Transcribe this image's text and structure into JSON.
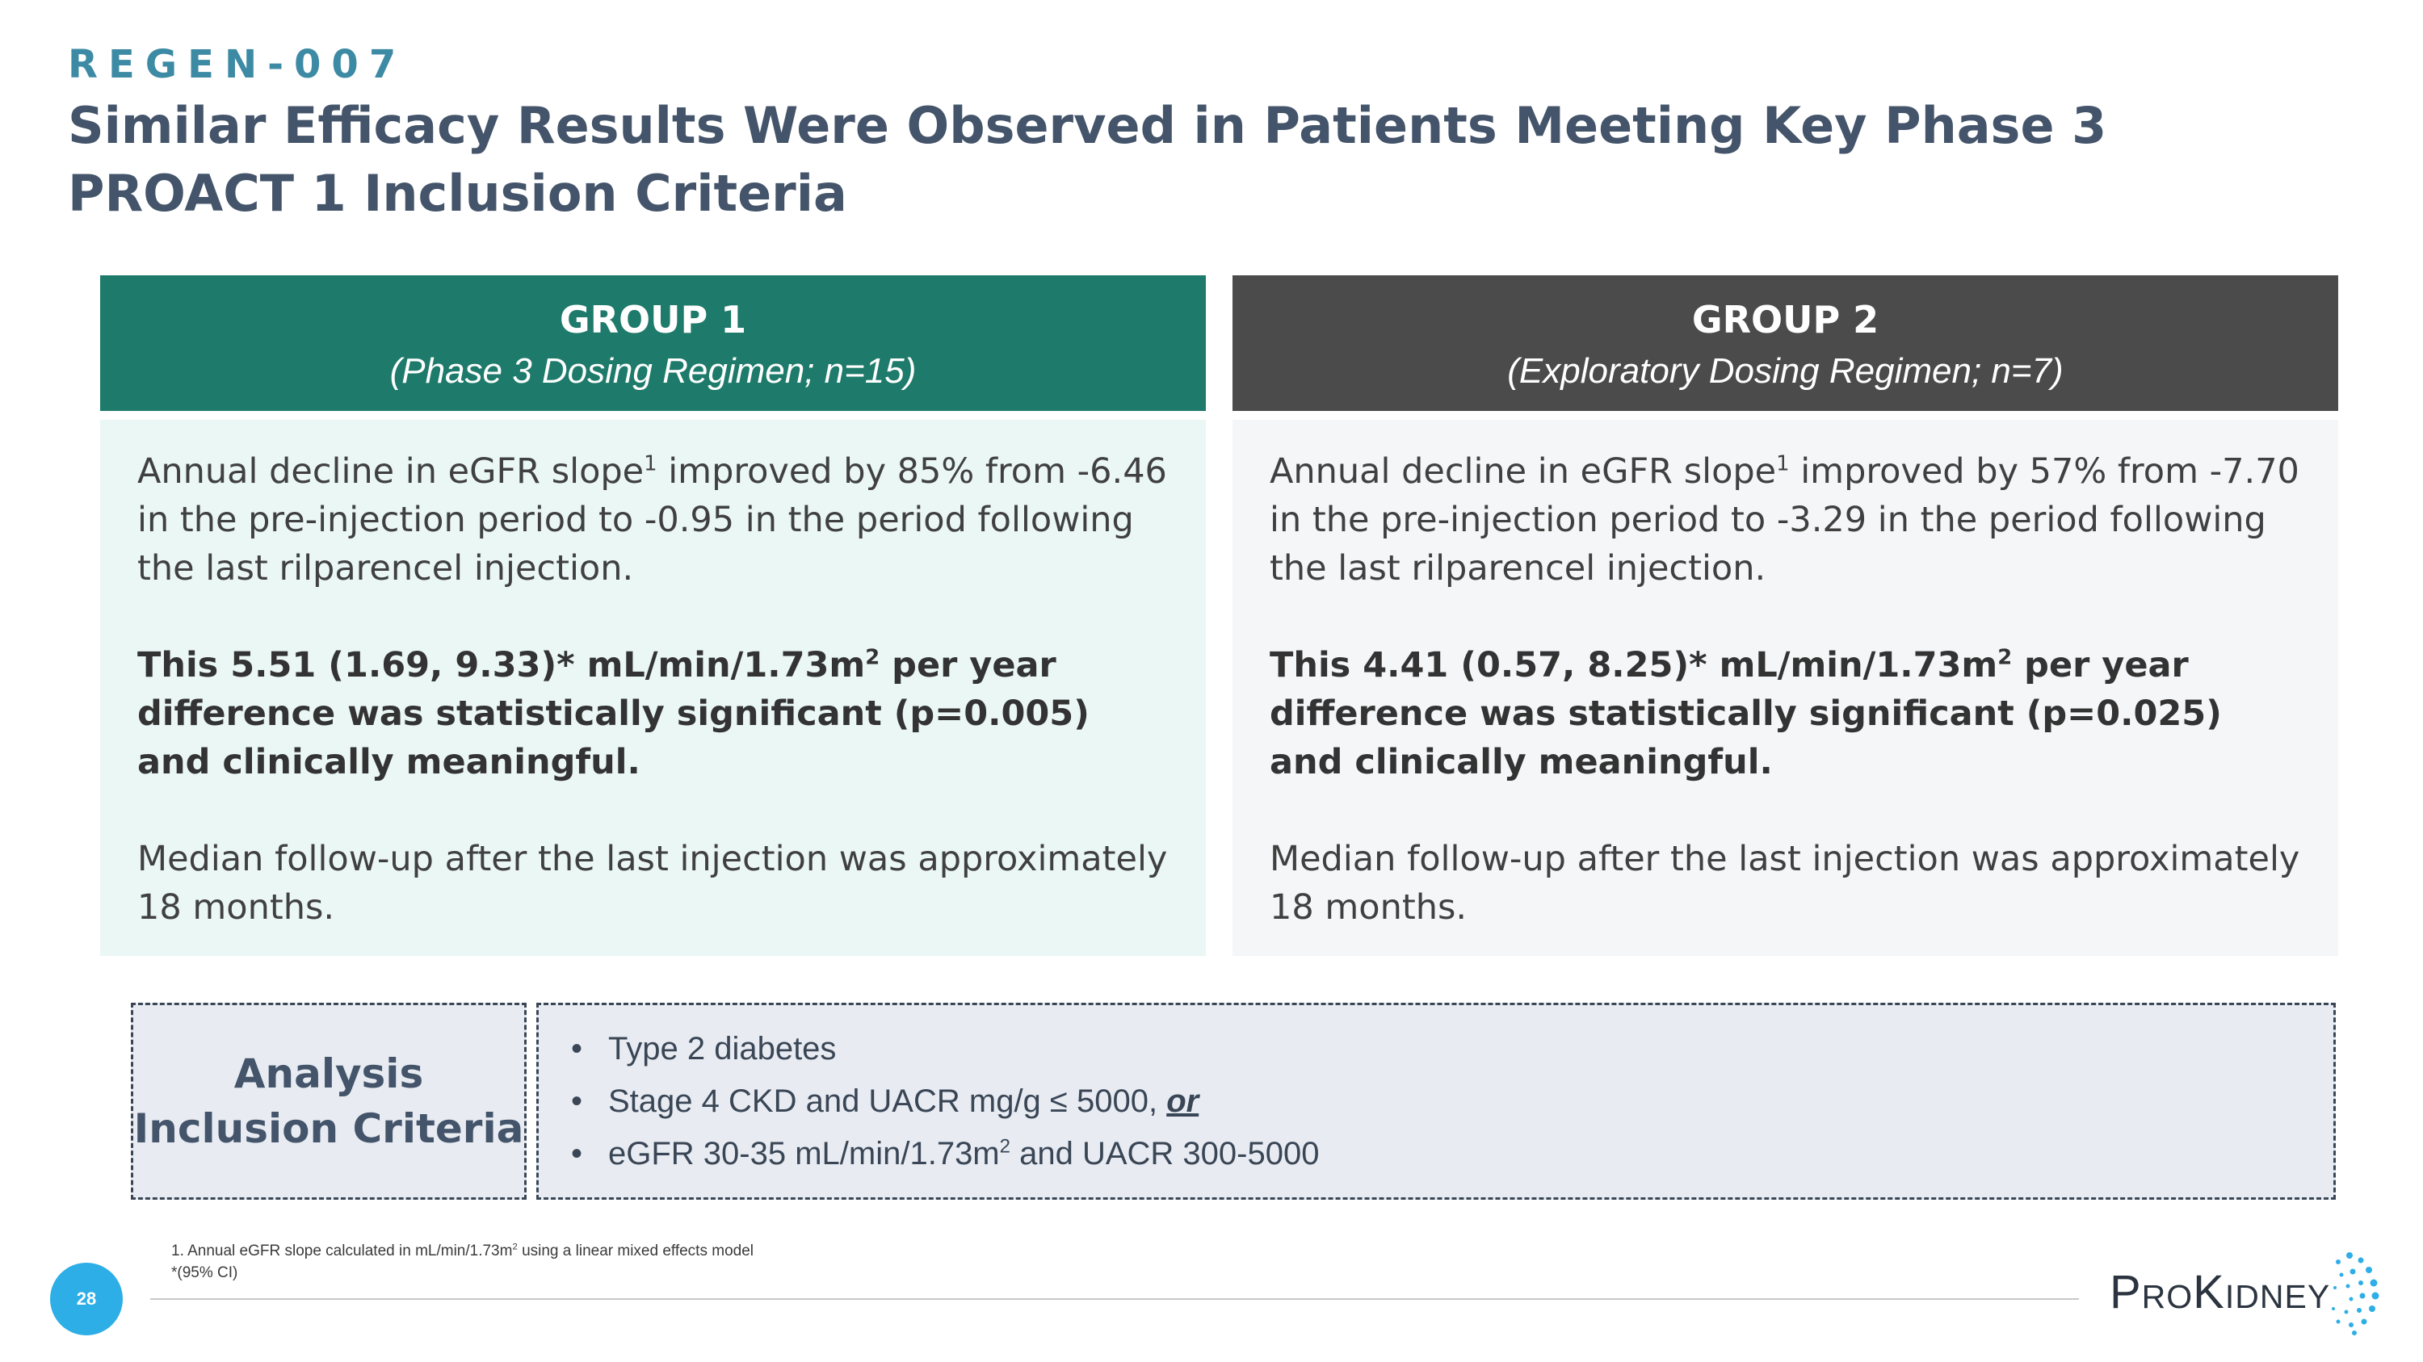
{
  "header": {
    "kicker": "REGEN-007",
    "title": "Similar Efficacy Results Were Observed in Patients Meeting Key Phase 3 PROACT 1 Inclusion Criteria"
  },
  "groups": [
    {
      "name": "GROUP 1",
      "subtitle": "(Phase 3 Dosing Regimen; n=15)",
      "para1_pre": "Annual decline in eGFR slope",
      "para1_sup": "1",
      "para1_post": " improved by 85% from -6.46 in the pre-injection period to -0.95 in the period following the last rilparencel injection.",
      "para2_pre": "This 5.51 (1.69, 9.33)* mL/min/1.73m",
      "para2_sup": "2",
      "para2_post": " per year difference was statistically significant (p=0.005) and clinically meaningful.",
      "para3": "Median follow-up after the last injection was approximately 18 months."
    },
    {
      "name": "GROUP 2",
      "subtitle": "(Exploratory Dosing Regimen; n=7)",
      "para1_pre": "Annual decline in eGFR slope",
      "para1_sup": "1",
      "para1_post": " improved by 57% from -7.70 in the pre-injection period to -3.29 in the period following the last rilparencel injection.",
      "para2_pre": "This 4.41 (0.57, 8.25)* mL/min/1.73m",
      "para2_sup": "2",
      "para2_post": " per year difference was statistically significant (p=0.025) and clinically meaningful.",
      "para3": "Median follow-up after the last injection was approximately 18 months."
    }
  ],
  "criteria": {
    "label": "Analysis Inclusion Criteria",
    "bullet": "•",
    "item1": "Type 2 diabetes",
    "item2_pre": "Stage 4 CKD and UACR mg/g ≤ 5000, ",
    "item2_or": "or",
    "item3_pre": "eGFR 30-35 mL/min/1.73m",
    "item3_sup": "2",
    "item3_post": " and UACR 300-5000"
  },
  "footnotes": {
    "fn1_pre": "1. Annual eGFR slope calculated in mL/min/1.73m",
    "fn1_sup": "2",
    "fn1_post": " using a linear mixed effects model",
    "fn2": "*(95% CI)"
  },
  "footer": {
    "page_number": "28",
    "logo_text": "ProKidney",
    "accent_color": "#2eaee6"
  }
}
